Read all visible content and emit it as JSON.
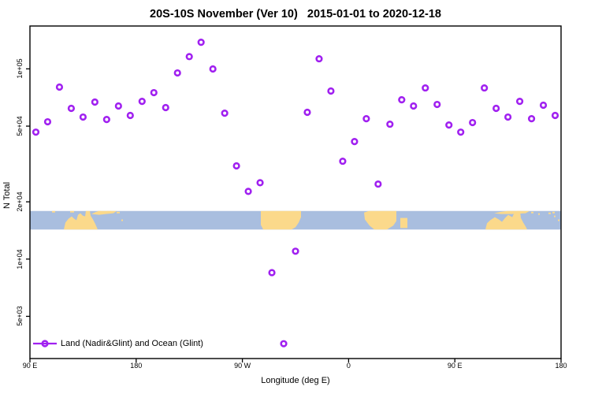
{
  "chart_data": {
    "type": "scatter",
    "title": "20S-10S November (Ver 10)   2015-01-01 to 2020-12-18",
    "xlabel": "Longitude (deg E)",
    "ylabel": "N Total",
    "x_axis": {
      "tick_labels": [
        "90 E",
        "180",
        "90 W",
        "0",
        "90 E",
        "180"
      ],
      "tick_positions_deg": [
        0,
        90,
        180,
        270,
        360,
        450
      ],
      "range_deg": [
        0,
        450
      ]
    },
    "y_axis": {
      "scale": "log",
      "tick_labels": [
        "1e+05",
        "5e+04",
        "2e+04",
        "1e+04",
        "5e+03"
      ],
      "tick_values": [
        100000,
        50000,
        20000,
        10000,
        5000
      ],
      "range": [
        3000,
        168000
      ]
    },
    "legend": {
      "label": "Land (Nadir&Glint) and Ocean (Glint)",
      "position": "bottom-left",
      "marker": "open-circle-with-line"
    },
    "series": [
      {
        "name": "Land (Nadir&Glint) and Ocean (Glint)",
        "marker": "open-circle",
        "color": "#A020F0",
        "x_deg_from_90E": [
          5,
          15,
          25,
          35,
          45,
          55,
          65,
          75,
          85,
          95,
          105,
          115,
          125,
          135,
          145,
          155,
          165,
          175,
          185,
          195,
          205,
          215,
          225,
          235,
          245,
          255,
          265,
          275,
          285,
          295,
          305,
          315,
          325,
          335,
          345,
          355,
          365,
          375,
          385,
          395,
          405,
          415,
          425,
          435,
          445
        ],
        "n_total": [
          46500,
          52700,
          80200,
          62000,
          55800,
          66900,
          54200,
          63800,
          56900,
          67500,
          75000,
          62600,
          95200,
          116000,
          138000,
          99900,
          58500,
          30900,
          22700,
          25200,
          8490,
          3590,
          11000,
          59100,
          113000,
          76500,
          32700,
          41500,
          54700,
          24800,
          51200,
          68800,
          63800,
          79400,
          65000,
          50700,
          46500,
          52200,
          79400,
          62000,
          55800,
          67500,
          54700,
          64400,
          56900
        ]
      }
    ],
    "map_band": {
      "description": "latitude band map strip 20S-10S",
      "ocean_color": "#A9BEDF",
      "land_color": "#FBD98B",
      "value_range": [
        14300,
        17900
      ],
      "land_polygons": [
        [
          [
            43,
            24
          ],
          [
            45,
            15
          ],
          [
            49,
            10
          ],
          [
            53,
            7
          ],
          [
            56,
            10
          ],
          [
            59,
            12
          ],
          [
            61,
            5
          ],
          [
            64,
            3
          ],
          [
            67,
            6
          ],
          [
            70,
            7
          ],
          [
            71,
            0
          ],
          [
            76,
            0
          ],
          [
            77,
            6
          ],
          [
            80,
            11
          ],
          [
            83,
            17
          ],
          [
            86,
            24
          ]
        ],
        [
          [
            78,
            4
          ],
          [
            84,
            1
          ],
          [
            90,
            0
          ],
          [
            110,
            0
          ],
          [
            106,
            3
          ],
          [
            96,
            4
          ],
          [
            88,
            5
          ]
        ],
        [
          [
            293,
            0
          ],
          [
            344,
            0
          ],
          [
            344,
            8
          ],
          [
            341,
            15
          ],
          [
            337,
            21
          ],
          [
            332,
            24
          ],
          [
            296,
            24
          ],
          [
            293,
            18
          ]
        ],
        [
          [
            424,
            2
          ],
          [
            430,
            0
          ],
          [
            465,
            0
          ],
          [
            465,
            13
          ],
          [
            461,
            19
          ],
          [
            453,
            24
          ],
          [
            437,
            24
          ],
          [
            431,
            19
          ],
          [
            425,
            11
          ]
        ],
        [
          [
            578,
            24
          ],
          [
            580,
            16
          ],
          [
            584,
            12
          ],
          [
            590,
            8
          ],
          [
            595,
            11
          ],
          [
            599,
            14
          ],
          [
            603,
            9
          ],
          [
            607,
            5
          ],
          [
            612,
            8
          ],
          [
            615,
            2
          ],
          [
            618,
            0
          ],
          [
            622,
            0
          ],
          [
            623,
            9
          ],
          [
            626,
            15
          ],
          [
            629,
            20
          ],
          [
            631,
            24
          ]
        ],
        [
          [
            589,
            3
          ],
          [
            598,
            1
          ],
          [
            606,
            0
          ],
          [
            634,
            0
          ],
          [
            629,
            3
          ],
          [
            612,
            4
          ],
          [
            598,
            4
          ]
        ]
      ],
      "land_rects": [
        [
          51,
          0,
          5,
          2
        ],
        [
          28,
          0,
          4,
          2
        ],
        [
          86,
          0,
          4,
          2
        ],
        [
          98,
          0,
          5,
          2
        ],
        [
          110,
          1,
          4,
          2
        ],
        [
          116,
          11,
          2,
          2
        ],
        [
          470,
          9,
          9,
          13
        ],
        [
          636,
          1,
          3,
          2
        ],
        [
          645,
          3,
          2,
          2
        ],
        [
          658,
          2,
          3,
          2
        ],
        [
          663,
          1,
          3,
          2
        ],
        [
          665,
          6,
          2,
          2
        ],
        [
          670,
          11,
          2,
          2
        ]
      ]
    },
    "colors": {
      "marker": "#A020F0",
      "axis": "#000000",
      "background": "#FFFFFF"
    }
  }
}
